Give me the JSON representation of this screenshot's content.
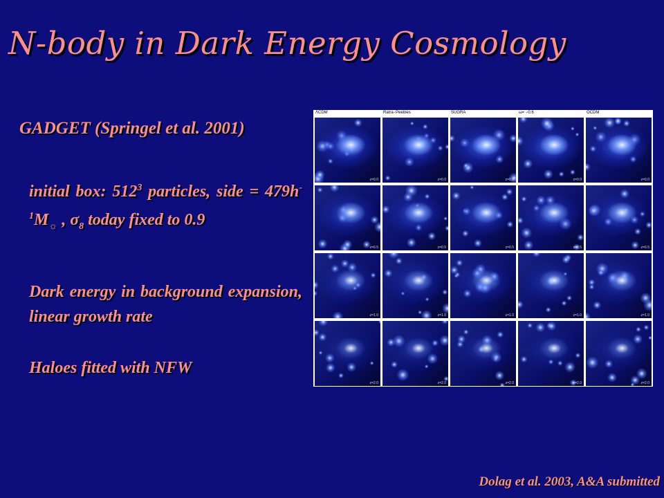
{
  "slide": {
    "title": "N-body in Dark Energy Cosmology",
    "subtitle": "GADGET (Springel et al. 2001)",
    "para1": {
      "a": "initial box: 512",
      "a_sup": "3",
      "b": " particles, side = 479h",
      "b_sup": "-1",
      "c": "M",
      "c_sym": "☼",
      "d": " , ",
      "sigma": "σ",
      "sigma_sub": "8",
      "e": " today fixed to 0.9"
    },
    "para2": "Dark energy in background expansion, linear growth rate",
    "para3": "Haloes fitted with NFW",
    "citation": "Dolag et al. 2003, A&A submitted"
  },
  "figure": {
    "columns": [
      "ΛCDM",
      "Ratra−Peebles",
      "SUGRA",
      "ω= −0.6",
      "OCDM"
    ],
    "row_labels": [
      "z=0.0",
      "z=0.5",
      "z=1.0",
      "z=2.0"
    ],
    "colors": {
      "bright": "#e8f0ff",
      "mid": "#4a78ff",
      "dim": "#1a2ab0",
      "bg": "#050530"
    }
  }
}
